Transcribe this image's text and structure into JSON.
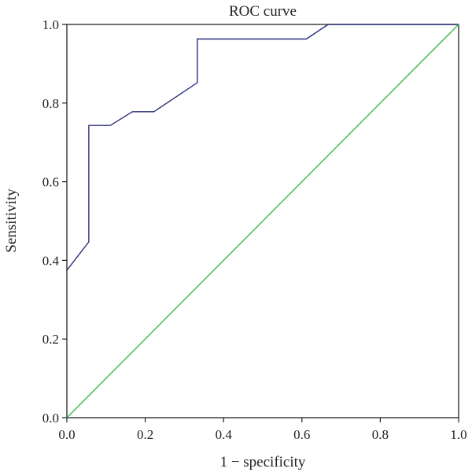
{
  "chart_data": {
    "type": "line",
    "title": "ROC curve",
    "xlabel": "1 − specificity",
    "ylabel": "Sensitivity",
    "xlim": [
      0.0,
      1.0
    ],
    "ylim": [
      0.0,
      1.0
    ],
    "x_ticks": [
      "0.0",
      "0.2",
      "0.4",
      "0.6",
      "0.8",
      "1.0"
    ],
    "y_ticks": [
      "0.0",
      "0.2",
      "0.4",
      "0.6",
      "0.8",
      "1.0"
    ],
    "grid": false,
    "legend": "none",
    "series": [
      {
        "color": "#2b2f7a",
        "points": [
          [
            0.0,
            0.375
          ],
          [
            0.056,
            0.447
          ],
          [
            0.056,
            0.743
          ],
          [
            0.111,
            0.743
          ],
          [
            0.167,
            0.778
          ],
          [
            0.222,
            0.778
          ],
          [
            0.333,
            0.852
          ],
          [
            0.333,
            0.963
          ],
          [
            0.611,
            0.963
          ],
          [
            0.667,
            1.0
          ],
          [
            1.0,
            1.0
          ]
        ]
      },
      {
        "color": "#3cb84a",
        "points": [
          [
            0.0,
            0.0
          ],
          [
            1.0,
            1.0
          ]
        ]
      }
    ]
  }
}
